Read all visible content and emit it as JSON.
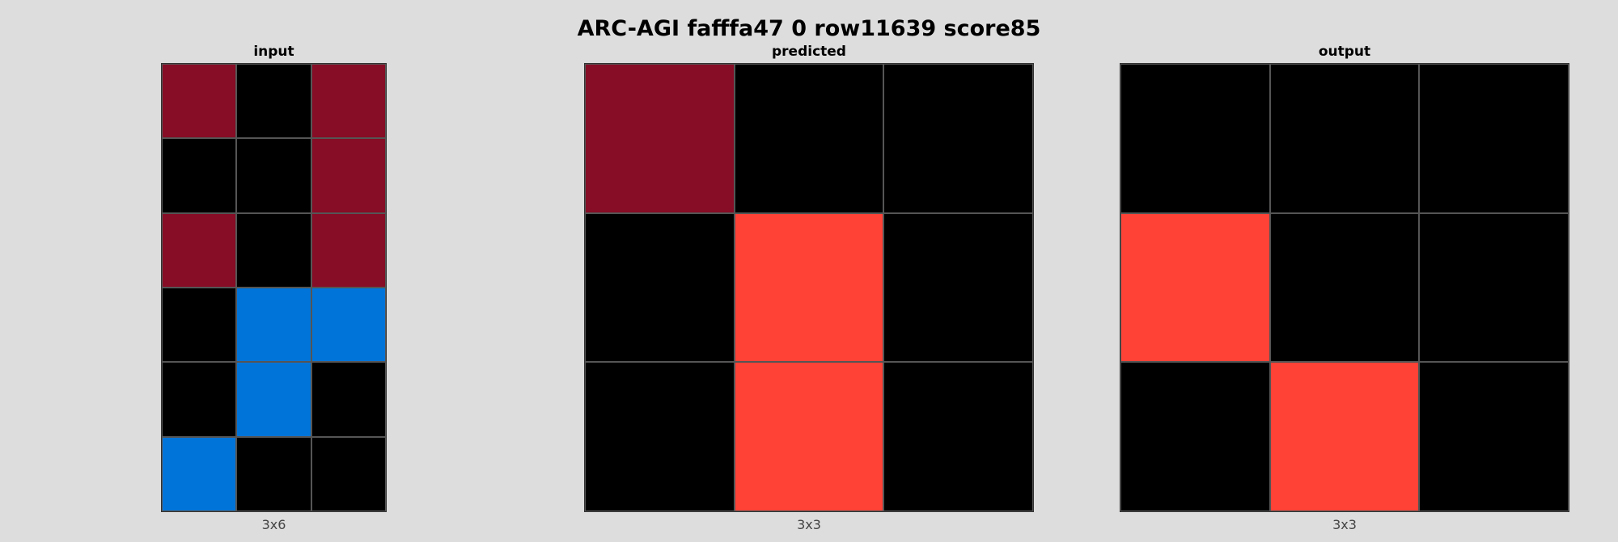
{
  "title": "ARC-AGI fafffa47 0 row11639 score85",
  "palette": {
    "0": "#000000",
    "1": "#0074d9",
    "2": "#ff4136",
    "9": "#870c25"
  },
  "panels": [
    {
      "id": "input",
      "label": "input",
      "dims": "3x6",
      "rows": [
        [
          9,
          0,
          9
        ],
        [
          0,
          0,
          9
        ],
        [
          9,
          0,
          9
        ],
        [
          0,
          1,
          1
        ],
        [
          0,
          1,
          0
        ],
        [
          1,
          0,
          0
        ]
      ]
    },
    {
      "id": "predicted",
      "label": "predicted",
      "dims": "3x3",
      "rows": [
        [
          9,
          0,
          0
        ],
        [
          0,
          2,
          0
        ],
        [
          0,
          2,
          0
        ]
      ]
    },
    {
      "id": "output",
      "label": "output",
      "dims": "3x3",
      "rows": [
        [
          0,
          0,
          0
        ],
        [
          2,
          0,
          0
        ],
        [
          0,
          2,
          0
        ]
      ]
    }
  ]
}
